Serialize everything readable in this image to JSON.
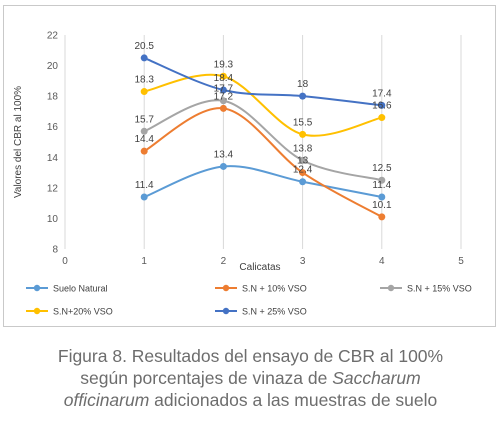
{
  "chart_data": {
    "type": "line",
    "x": [
      1,
      2,
      3,
      4
    ],
    "xlim": [
      0,
      5
    ],
    "ylim": [
      8,
      22
    ],
    "xticks": [
      0,
      1,
      2,
      3,
      4,
      5
    ],
    "yticks": [
      8,
      10,
      12,
      14,
      16,
      18,
      20,
      22
    ],
    "xlabel": "Calicatas",
    "ylabel": "Valores del CBR al 100%",
    "grid": "vertical",
    "legend_position": "bottom",
    "series": [
      {
        "name": "Suelo  Natural",
        "color": "#5b9bd5",
        "values": [
          11.4,
          13.4,
          12.4,
          11.4
        ],
        "labels": [
          "11.4",
          "13.4",
          "12.4",
          "11.4"
        ]
      },
      {
        "name": "S.N + 10% VSO",
        "color": "#ed7d31",
        "values": [
          14.4,
          17.2,
          13,
          10.1
        ],
        "labels": [
          "14.4",
          "17.2",
          "13",
          "10.1"
        ]
      },
      {
        "name": "S.N + 15% VSO",
        "color": "#a5a5a5",
        "values": [
          15.7,
          17.7,
          13.8,
          12.5
        ],
        "labels": [
          "15.7",
          "17.7",
          "13.8",
          "12.5"
        ]
      },
      {
        "name": "S.N+20% VSO",
        "color": "#ffc000",
        "values": [
          18.3,
          19.3,
          15.5,
          16.6
        ],
        "labels": [
          "18.3",
          "19.3",
          "15.5",
          "16.6"
        ]
      },
      {
        "name": "S.N + 25% VSO",
        "color": "#4472c4",
        "values": [
          20.5,
          18.4,
          18,
          17.4
        ],
        "labels": [
          "20.5",
          "18.4",
          "18",
          "17.4"
        ]
      }
    ]
  },
  "caption": {
    "line1": "Figura 8. Resultados del ensayo de CBR al 100%",
    "line2_start": "según porcentajes de vinaza de ",
    "line2_italic": "Saccharum",
    "line3_italic": "officinarum",
    "line3_end": " adicionados a las muestras de suelo"
  }
}
